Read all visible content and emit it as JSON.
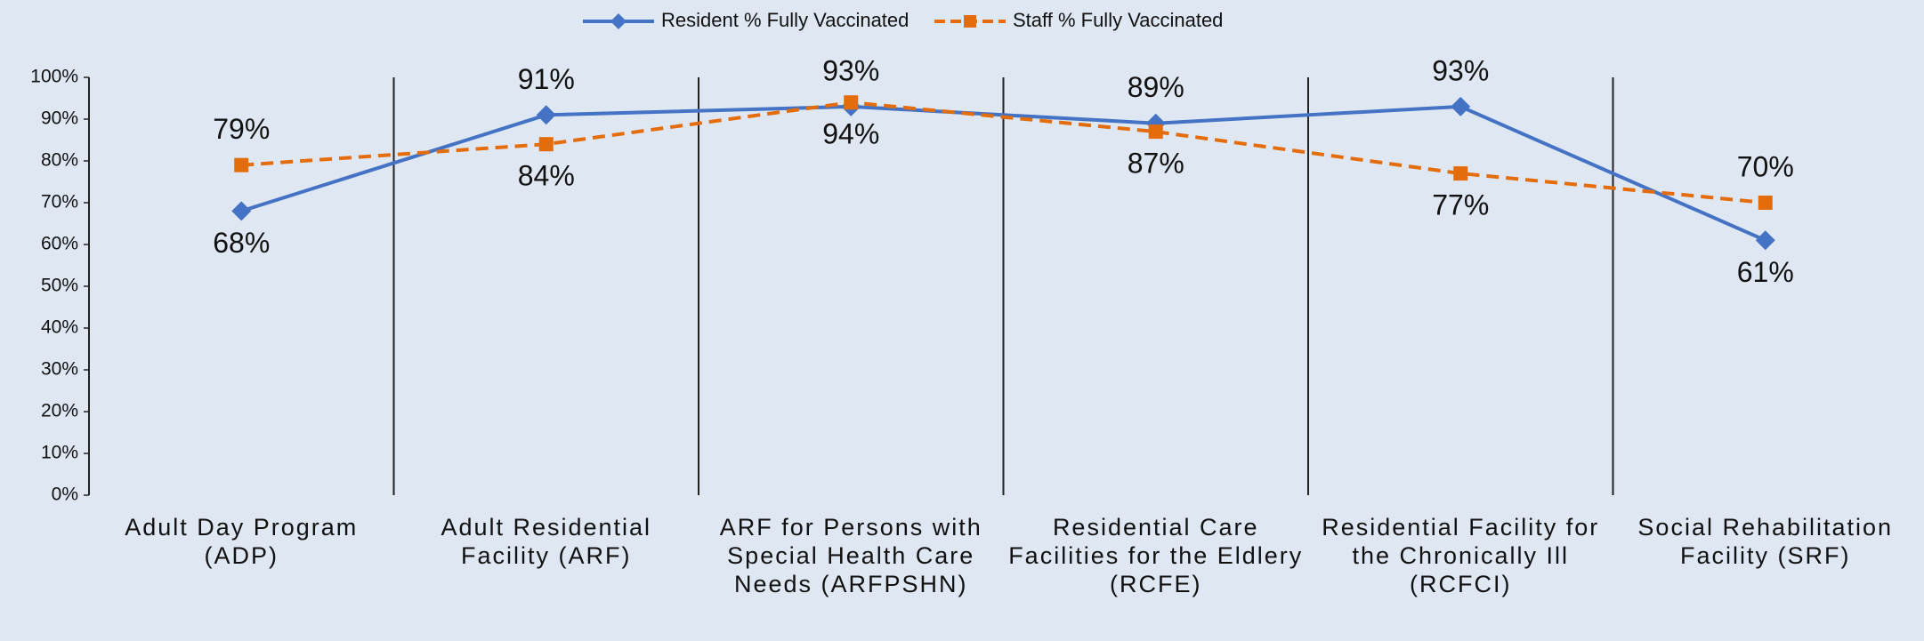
{
  "chart_data": {
    "type": "line",
    "categories": [
      "Adult Day Program (ADP)",
      "Adult Residential Facility (ARF)",
      "ARF for Persons with Special Health Care Needs (ARFPSHN)",
      "Residential Care Facilities for the Eldlery (RCFE)",
      "Residential Facility for the Chronically Ill (RCFCI)",
      "Social Rehabilitation Facility (SRF)"
    ],
    "series": [
      {
        "name": "Resident % Fully Vaccinated",
        "color": "#4472c4",
        "dash": false,
        "marker": "diamond",
        "values": [
          68,
          91,
          93,
          89,
          93,
          61
        ],
        "value_labels": [
          "68%",
          "91%",
          "93%",
          "89%",
          "93%",
          "61%"
        ]
      },
      {
        "name": "Staff % Fully Vaccinated",
        "color": "#e46c0a",
        "dash": true,
        "marker": "square",
        "values": [
          79,
          84,
          94,
          87,
          77,
          70
        ],
        "value_labels": [
          "79%",
          "84%",
          "94%",
          "87%",
          "77%",
          "70%"
        ]
      }
    ],
    "ylim": [
      0,
      100
    ],
    "yticks": [
      {
        "value": 0,
        "label": "0%"
      },
      {
        "value": 10,
        "label": "10%"
      },
      {
        "value": 20,
        "label": "20%"
      },
      {
        "value": 30,
        "label": "30%"
      },
      {
        "value": 40,
        "label": "40%"
      },
      {
        "value": 50,
        "label": "50%"
      },
      {
        "value": 60,
        "label": "60%"
      },
      {
        "value": 70,
        "label": "70%"
      },
      {
        "value": 80,
        "label": "80%"
      },
      {
        "value": 90,
        "label": "90%"
      },
      {
        "value": 100,
        "label": "100%"
      }
    ],
    "legend": "top"
  }
}
